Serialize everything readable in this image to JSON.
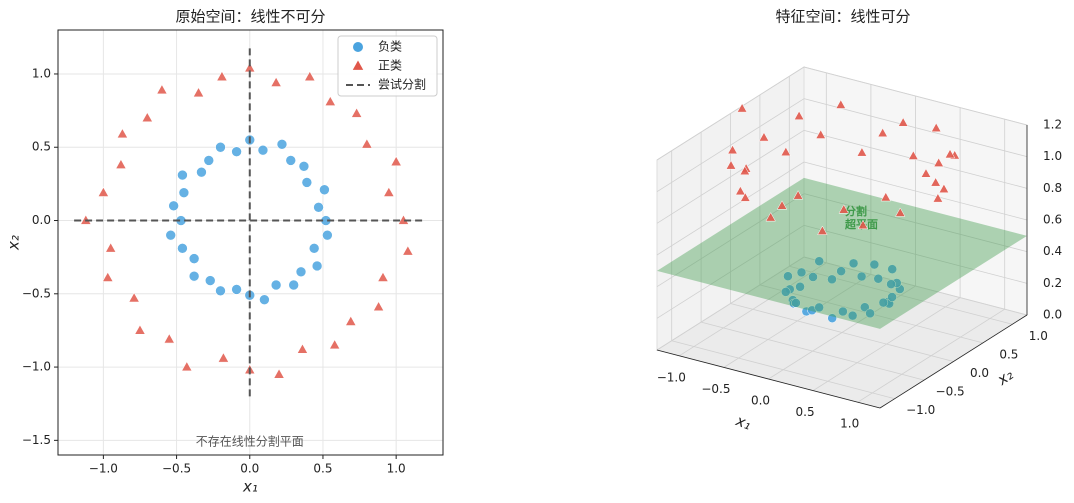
{
  "chart_data": [
    {
      "type": "scatter",
      "title": "原始空间：线性不可分",
      "xlabel": "x₁",
      "ylabel": "x₂",
      "xlim": [
        -1.31,
        1.32
      ],
      "ylim": [
        -1.6,
        1.3
      ],
      "xticks": [
        {
          "value": -1,
          "label": "−1.0"
        },
        {
          "value": -0.5,
          "label": "−0.5"
        },
        {
          "value": 0,
          "label": "0.0"
        },
        {
          "value": 0.5,
          "label": "0.5"
        },
        {
          "value": 1,
          "label": "1.0"
        }
      ],
      "yticks": [
        {
          "value": -1.5,
          "label": "−1.5"
        },
        {
          "value": -1,
          "label": "−1.0"
        },
        {
          "value": -0.5,
          "label": "−0.5"
        },
        {
          "value": 0,
          "label": "0.0"
        },
        {
          "value": 0.5,
          "label": "0.5"
        },
        {
          "value": 1,
          "label": "1.0"
        }
      ],
      "grid": true,
      "legend": "upper right",
      "annotation": "不存在线性分割平面",
      "series": [
        {
          "name": "负类",
          "kind": "points",
          "marker": "circle",
          "color": "#4aa3df",
          "x": [
            0.52,
            0.47,
            0.51,
            0.39,
            0.37,
            0.28,
            0.22,
            0.09,
            0.0,
            -0.09,
            -0.2,
            -0.28,
            -0.33,
            -0.46,
            -0.45,
            -0.52,
            -0.47,
            -0.54,
            -0.46,
            -0.38,
            -0.38,
            -0.27,
            -0.2,
            -0.09,
            0.0,
            0.1,
            0.18,
            0.3,
            0.35,
            0.46,
            0.44,
            0.53
          ],
          "y": [
            0.0,
            0.09,
            0.21,
            0.26,
            0.37,
            0.41,
            0.52,
            0.48,
            0.55,
            0.47,
            0.5,
            0.41,
            0.33,
            0.31,
            0.19,
            0.1,
            0.0,
            -0.1,
            -0.19,
            -0.26,
            -0.38,
            -0.41,
            -0.48,
            -0.47,
            -0.51,
            -0.54,
            -0.44,
            -0.44,
            -0.35,
            -0.31,
            -0.19,
            -0.1
          ]
        },
        {
          "name": "正类",
          "kind": "points",
          "marker": "triangle",
          "color": "#e0574a",
          "x": [
            1.05,
            0.95,
            1.0,
            0.8,
            0.73,
            0.55,
            0.41,
            0.18,
            0.0,
            -0.19,
            -0.35,
            -0.6,
            -0.7,
            -0.87,
            -0.88,
            -1.0,
            -1.12,
            -0.95,
            -0.97,
            -0.79,
            -0.75,
            -0.55,
            -0.43,
            -0.18,
            0.0,
            0.2,
            0.36,
            0.58,
            0.69,
            0.88,
            0.91,
            1.08
          ],
          "y": [
            0.0,
            0.19,
            0.4,
            0.52,
            0.73,
            0.81,
            0.98,
            0.94,
            1.04,
            0.98,
            0.87,
            0.89,
            0.7,
            0.59,
            0.38,
            0.19,
            0.0,
            -0.19,
            -0.39,
            -0.53,
            -0.75,
            -0.81,
            -1.0,
            -0.94,
            -1.02,
            -1.05,
            -0.88,
            -0.85,
            -0.69,
            -0.59,
            -0.39,
            -0.21
          ]
        },
        {
          "name": "尝试分割",
          "kind": "lines",
          "color": "#555555",
          "segments": [
            {
              "x": [
                -1.2,
                1.2
              ],
              "y": [
                0,
                0
              ]
            },
            {
              "x": [
                0,
                0
              ],
              "y": [
                -1.2,
                1.2
              ]
            }
          ]
        }
      ]
    },
    {
      "type": "scatter3d",
      "title": "特征空间：线性可分",
      "xlabel": "x₁",
      "ylabel": "x₂",
      "xlim": [
        -1.25,
        1.25
      ],
      "ylim": [
        -1.25,
        1.25
      ],
      "zlim": [
        0,
        1.2
      ],
      "xticks": [
        {
          "value": -1,
          "label": "−1.0"
        },
        {
          "value": -0.5,
          "label": "−0.5"
        },
        {
          "value": 0,
          "label": "0.0"
        },
        {
          "value": 0.5,
          "label": "0.5"
        },
        {
          "value": 1,
          "label": "1.0"
        }
      ],
      "yticks": [
        {
          "value": -1,
          "label": "−1.0"
        },
        {
          "value": -0.5,
          "label": "−0.5"
        },
        {
          "value": 0,
          "label": "0.0"
        },
        {
          "value": 0.5,
          "label": "0.5"
        },
        {
          "value": 1,
          "label": "1.0"
        }
      ],
      "zticks": [
        {
          "value": 0,
          "label": "0.0"
        },
        {
          "value": 0.2,
          "label": "0.2"
        },
        {
          "value": 0.4,
          "label": "0.4"
        },
        {
          "value": 0.6,
          "label": "0.6"
        },
        {
          "value": 0.8,
          "label": "0.8"
        },
        {
          "value": 1,
          "label": "1.0"
        },
        {
          "value": 1.2,
          "label": "1.2"
        }
      ],
      "plane": {
        "z": 0.5,
        "color": "#3f9a4a",
        "label": [
          "分割",
          "超平面"
        ]
      },
      "series": [
        {
          "marker": "circle",
          "color": "#4aa3df",
          "x": [
            0.52,
            0.47,
            0.51,
            0.39,
            0.37,
            0.28,
            0.22,
            0.09,
            0.0,
            -0.09,
            -0.2,
            -0.28,
            -0.33,
            -0.46,
            -0.45,
            -0.52,
            -0.47,
            -0.54,
            -0.46,
            -0.38,
            -0.38,
            -0.27,
            -0.2,
            -0.09,
            0.0,
            0.1,
            0.18,
            0.3,
            0.35,
            0.46,
            0.44,
            0.53
          ],
          "y": [
            0.0,
            0.09,
            0.21,
            0.26,
            0.37,
            0.41,
            0.52,
            0.48,
            0.55,
            0.47,
            0.5,
            0.41,
            0.33,
            0.31,
            0.19,
            0.1,
            0.0,
            -0.1,
            -0.19,
            -0.26,
            -0.38,
            -0.41,
            -0.48,
            -0.47,
            -0.51,
            -0.54,
            -0.44,
            -0.44,
            -0.35,
            -0.31,
            -0.19,
            -0.1
          ],
          "z": [
            0.27,
            0.23,
            0.3,
            0.22,
            0.28,
            0.25,
            0.31,
            0.24,
            0.3,
            0.23,
            0.29,
            0.25,
            0.21,
            0.31,
            0.24,
            0.28,
            0.22,
            0.3,
            0.25,
            0.21,
            0.29,
            0.24,
            0.27,
            0.23,
            0.26,
            0.3,
            0.22,
            0.28,
            0.24,
            0.3,
            0.23,
            0.29
          ]
        },
        {
          "marker": "triangle",
          "color": "#e0574a",
          "x": [
            1.05,
            0.95,
            1.0,
            0.8,
            0.73,
            0.55,
            0.41,
            0.18,
            0.0,
            -0.19,
            -0.35,
            -0.6,
            -0.7,
            -0.87,
            -0.88,
            -1.0,
            -1.12,
            -0.95,
            -0.97,
            -0.79,
            -0.75,
            -0.55,
            -0.43,
            -0.18,
            0.0,
            0.2,
            0.36,
            0.58,
            0.69,
            0.88,
            0.91,
            1.08
          ],
          "y": [
            0.0,
            0.19,
            0.4,
            0.52,
            0.73,
            0.81,
            0.98,
            0.94,
            1.04,
            0.98,
            0.87,
            0.89,
            0.7,
            0.59,
            0.38,
            0.19,
            0.0,
            -0.19,
            -0.39,
            -0.53,
            -0.75,
            -0.81,
            -1.0,
            -0.94,
            -1.02,
            -1.05,
            -0.88,
            -0.85,
            -0.69,
            -0.59,
            -0.39,
            -0.21
          ],
          "z": [
            1.1,
            0.94,
            1.17,
            0.9,
            1.06,
            0.96,
            1.12,
            0.92,
            1.08,
            1.0,
            0.88,
            1.14,
            0.98,
            1.1,
            0.92,
            1.04,
            1.25,
            0.94,
            1.1,
            0.9,
            1.12,
            0.96,
            1.19,
            0.92,
            1.04,
            1.14,
            0.9,
            1.06,
            0.94,
            1.12,
            0.98,
            1.21
          ]
        }
      ]
    }
  ]
}
